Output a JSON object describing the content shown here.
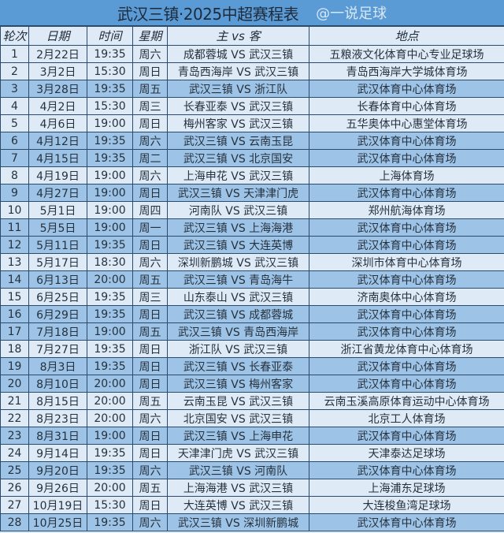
{
  "title": "武汉三镇·2025中超赛程表",
  "watermark": "@一说足球",
  "colors": {
    "title_bg": "#5b9bd5",
    "home_row": "#9dc3e6",
    "away_row": "#deebf7",
    "border": "#2c4a6b"
  },
  "headers": [
    "轮次",
    "日期",
    "时间",
    "星期",
    "主 vs 客",
    "地点"
  ],
  "rows": [
    [
      "1",
      "2月22日",
      "19:35",
      "周六",
      "成都蓉城 VS 武汉三镇",
      "五粮液文化体育中心专业足球场",
      "away"
    ],
    [
      "2",
      "3月2日",
      "15:30",
      "周日",
      "青岛西海岸 VS 武汉三镇",
      "青岛西海岸大学城体育场",
      "away"
    ],
    [
      "3",
      "3月28日",
      "19:35",
      "周五",
      "武汉三镇 VS 浙江队",
      "武汉体育中心体育场",
      "home"
    ],
    [
      "4",
      "4月2日",
      "15:30",
      "周三",
      "长春亚泰 VS 武汉三镇",
      "长春体育中心体育场",
      "away"
    ],
    [
      "5",
      "4月6日",
      "19:00",
      "周日",
      "梅州客家 VS 武汉三镇",
      "五华奥体中心惠堂体育场",
      "away"
    ],
    [
      "6",
      "4月12日",
      "19:35",
      "周六",
      "武汉三镇 VS 云南玉昆",
      "武汉体育中心体育场",
      "home"
    ],
    [
      "7",
      "4月15日",
      "19:35",
      "周二",
      "武汉三镇 VS 北京国安",
      "武汉体育中心体育场",
      "home"
    ],
    [
      "8",
      "4月19日",
      "19:00",
      "周六",
      "上海申花 VS 武汉三镇",
      "上海体育场",
      "away"
    ],
    [
      "9",
      "4月27日",
      "19:00",
      "周日",
      "武汉三镇 VS 天津津门虎",
      "武汉体育中心体育场",
      "home"
    ],
    [
      "10",
      "5月1日",
      "19:00",
      "周四",
      "河南队 VS 武汉三镇",
      "郑州航海体育场",
      "away"
    ],
    [
      "11",
      "5月5日",
      "19:00",
      "周一",
      "武汉三镇 VS 上海海港",
      "武汉体育中心体育场",
      "home"
    ],
    [
      "12",
      "5月11日",
      "19:35",
      "周日",
      "武汉三镇 VS 大连英博",
      "武汉体育中心体育场",
      "home"
    ],
    [
      "13",
      "5月17日",
      "18:30",
      "周六",
      "深圳新鹏城 VS 武汉三镇",
      "深圳市体育中心体育场",
      "away"
    ],
    [
      "14",
      "6月13日",
      "20:00",
      "周五",
      "武汉三镇 VS 青岛海牛",
      "武汉体育中心体育场",
      "home"
    ],
    [
      "15",
      "6月25日",
      "19:35",
      "周三",
      "山东泰山 VS 武汉三镇",
      "济南奥体中心体育场",
      "away"
    ],
    [
      "16",
      "6月29日",
      "19:35",
      "周日",
      "武汉三镇 VS 成都蓉城",
      "武汉体育中心体育场",
      "home"
    ],
    [
      "17",
      "7月18日",
      "19:00",
      "周五",
      "武汉三镇 VS 青岛西海岸",
      "武汉体育中心体育场",
      "home"
    ],
    [
      "18",
      "7月27日",
      "19:35",
      "周日",
      "浙江队 VS 武汉三镇",
      "浙江省黄龙体育中心体育场",
      "away"
    ],
    [
      "19",
      "8月3日",
      "19:35",
      "周日",
      "武汉三镇 VS 长春亚泰",
      "武汉体育中心体育场",
      "home"
    ],
    [
      "20",
      "8月10日",
      "20:00",
      "周日",
      "武汉三镇 VS 梅州客家",
      "武汉体育中心体育场",
      "home"
    ],
    [
      "21",
      "8月15日",
      "20:00",
      "周五",
      "云南玉昆 VS 武汉三镇",
      "云南玉溪高原体育运动中心体育场",
      "away"
    ],
    [
      "22",
      "8月23日",
      "20:00",
      "周六",
      "北京国安 VS 武汉三镇",
      "北京工人体育场",
      "away"
    ],
    [
      "23",
      "8月31日",
      "19:00",
      "周日",
      "武汉三镇 VS 上海申花",
      "武汉体育中心体育场",
      "home"
    ],
    [
      "24",
      "9月14日",
      "19:35",
      "周日",
      "天津津门虎 VS 武汉三镇",
      "天津泰达足球场",
      "away"
    ],
    [
      "25",
      "9月20日",
      "19:35",
      "周六",
      "武汉三镇 VS 河南队",
      "武汉体育中心体育场",
      "home"
    ],
    [
      "26",
      "9月26日",
      "20:00",
      "周五",
      "上海海港 VS 武汉三镇",
      "上海浦东足球场",
      "away"
    ],
    [
      "27",
      "10月19日",
      "15:30",
      "周日",
      "大连英博 VS 武汉三镇",
      "大连梭鱼湾足球场",
      "away"
    ],
    [
      "28",
      "10月25日",
      "19:35",
      "周六",
      "武汉三镇 VS 深圳新鹏城",
      "武汉体育中心体育场",
      "home"
    ]
  ]
}
